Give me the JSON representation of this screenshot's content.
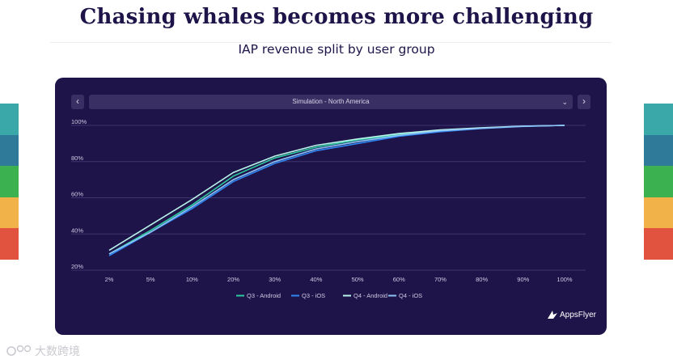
{
  "slide": {
    "title": "Chasing whales becomes more challenging",
    "subtitle": "IAP revenue split by user group"
  },
  "colors": {
    "title": "#1e1449",
    "panel": "#1e1449",
    "stripes": [
      "#3aa7a8",
      "#2f7a98",
      "#3bb24f",
      "#f1b24a",
      "#e2533f"
    ]
  },
  "controls": {
    "prev_label": "‹",
    "next_label": "›",
    "dropdown_value": "Simulation - North America"
  },
  "logo": {
    "text": "AppsFlyer"
  },
  "watermark": {
    "text": "大数跨境"
  },
  "chart_data": {
    "type": "line",
    "title": "IAP revenue split by user group",
    "xlabel": "",
    "ylabel": "",
    "categories": [
      "2%",
      "5%",
      "10%",
      "20%",
      "30%",
      "40%",
      "50%",
      "60%",
      "70%",
      "80%",
      "90%",
      "100%"
    ],
    "yticks": [
      "20%",
      "40%",
      "60%",
      "80%",
      "100%"
    ],
    "ylim": [
      20,
      100
    ],
    "grid": true,
    "legend_position": "bottom",
    "series": [
      {
        "name": "Q3 - Android",
        "color": "#2ec9a0",
        "values": [
          29,
          42,
          56,
          72,
          82,
          88,
          92,
          95,
          97,
          98.5,
          99.5,
          100
        ]
      },
      {
        "name": "Q3 - iOS",
        "color": "#2f86f2",
        "values": [
          28,
          41,
          54,
          69,
          79,
          86,
          90,
          94,
          96.5,
          98.3,
          99.4,
          100
        ]
      },
      {
        "name": "Q4 - Android",
        "color": "#b9f3ea",
        "values": [
          31,
          45,
          59,
          74,
          83,
          89,
          92.5,
          95.5,
          97.5,
          98.7,
          99.6,
          100
        ]
      },
      {
        "name": "Q4 - iOS",
        "color": "#8ec2f7",
        "values": [
          29,
          41,
          55,
          70,
          80,
          87,
          91,
          94.5,
          97,
          98.4,
          99.5,
          100
        ]
      }
    ]
  }
}
